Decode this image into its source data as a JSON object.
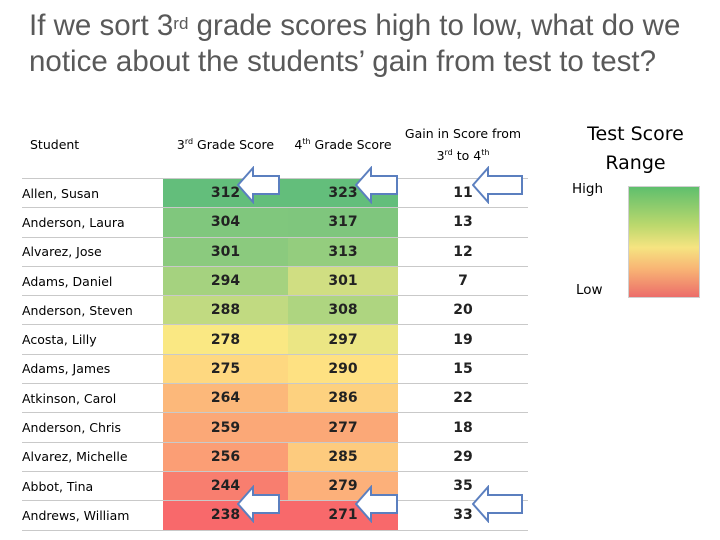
{
  "title": {
    "part1": "If we sort 3",
    "sup": "rd",
    "part2": " grade scores high to low, what do we notice about the students’ gain from test to test?"
  },
  "table": {
    "headers": {
      "student": "Student",
      "s3_pre": "3",
      "s3_sup": "rd",
      "s3_post": " Grade Score",
      "s4_pre": "4",
      "s4_sup": "th",
      "s4_post": " Grade Score",
      "gain_line1": "Gain in Score from",
      "gain_a": "3",
      "gain_a_sup": "rd",
      "gain_mid": " to 4",
      "gain_b_sup": "th"
    },
    "rows": [
      {
        "name": "Allen, Susan",
        "s3": "312",
        "s4": "323",
        "gain": "11",
        "color3": "#63be7b",
        "color4": "#63be7b"
      },
      {
        "name": "Anderson, Laura",
        "s3": "304",
        "s4": "317",
        "gain": "13",
        "color3": "#80c77d",
        "color4": "#7fc67d"
      },
      {
        "name": "Alvarez, Jose",
        "s3": "301",
        "s4": "313",
        "gain": "12",
        "color3": "#8bca7e",
        "color4": "#94cd7e"
      },
      {
        "name": "Adams, Daniel",
        "s3": "294",
        "s4": "301",
        "gain": "7",
        "color3": "#a5d27f",
        "color4": "#d0de82"
      },
      {
        "name": "Anderson, Steven",
        "s3": "288",
        "s4": "308",
        "gain": "20",
        "color3": "#c1da81",
        "color4": "#aed580"
      },
      {
        "name": "Acosta, Lilly",
        "s3": "278",
        "s4": "297",
        "gain": "19",
        "color3": "#fae883",
        "color4": "#ebe684"
      },
      {
        "name": "Adams, James",
        "s3": "275",
        "s4": "290",
        "gain": "15",
        "color3": "#fed880",
        "color4": "#fee182"
      },
      {
        "name": "Atkinson, Carol",
        "s3": "264",
        "s4": "286",
        "gain": "22",
        "color3": "#fcb87a",
        "color4": "#fdd17f"
      },
      {
        "name": "Anderson, Chris",
        "s3": "259",
        "s4": "277",
        "gain": "18",
        "color3": "#fba877",
        "color4": "#fba877"
      },
      {
        "name": "Alvarez, Michelle",
        "s3": "256",
        "s4": "285",
        "gain": "29",
        "color3": "#fb9e75",
        "color4": "#fdcb7e"
      },
      {
        "name": "Abbot, Tina",
        "s3": "244",
        "s4": "279",
        "gain": "35",
        "color3": "#f87e6f",
        "color4": "#fcb07a"
      },
      {
        "name": "Andrews, William",
        "s3": "238",
        "s4": "271",
        "gain": "33",
        "color3": "#f8696b",
        "color4": "#f8696b"
      }
    ]
  },
  "legend": {
    "title": "Test Score Range",
    "high": "High",
    "low": "Low"
  },
  "colors": {
    "arrow_fill": "#ffffff",
    "arrow_stroke": "#5b7fbf",
    "title_text": "#595959"
  }
}
